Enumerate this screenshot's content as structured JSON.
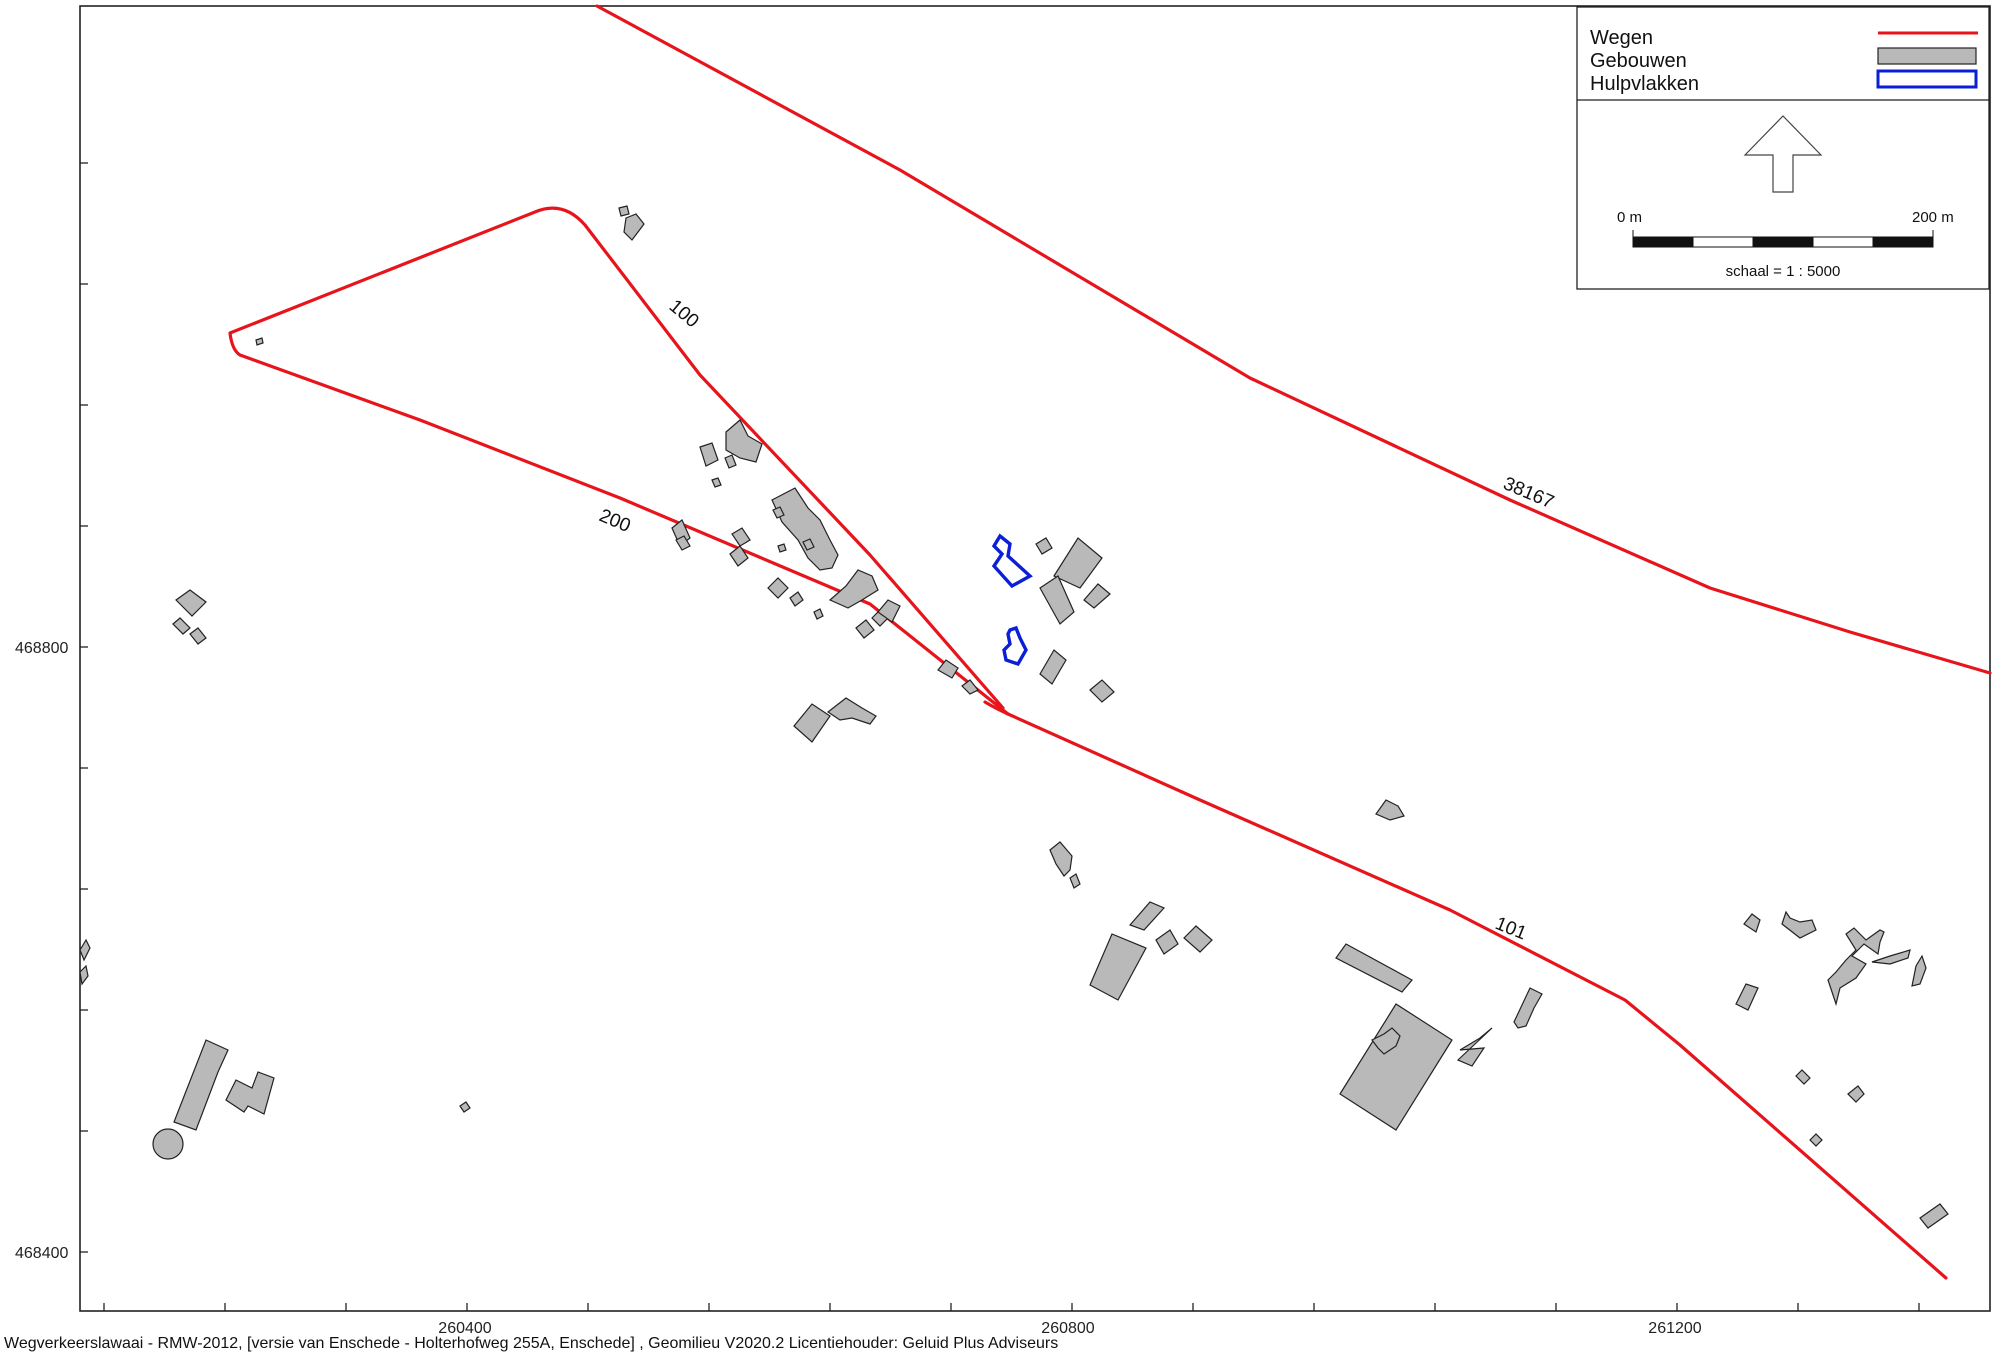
{
  "map": {
    "axes": {
      "y_labels": [
        "468800",
        "468400"
      ],
      "x_labels": [
        "260400",
        "260800",
        "261200"
      ]
    },
    "road_labels": [
      "100",
      "200",
      "38167",
      "101"
    ],
    "legend": {
      "items": [
        {
          "label": "Wegen",
          "symbol": "red-line",
          "color": "#e8141c"
        },
        {
          "label": "Gebouwen",
          "symbol": "grey-box",
          "color": "#b9b9b9"
        },
        {
          "label": "Hulpvlakken",
          "symbol": "blue-outline",
          "color": "#0a1fd6"
        }
      ],
      "north_arrow": "north-arrow-icon",
      "scale_left": "0 m",
      "scale_right": "200 m",
      "scale_text": "schaal = 1 : 5000"
    },
    "footer": "Wegverkeerslawaai - RMW-2012, [versie van Enschede - Holterhofweg 255A, Enschede] , Geomilieu V2020.2 Licentiehouder: Geluid Plus Adviseurs"
  }
}
